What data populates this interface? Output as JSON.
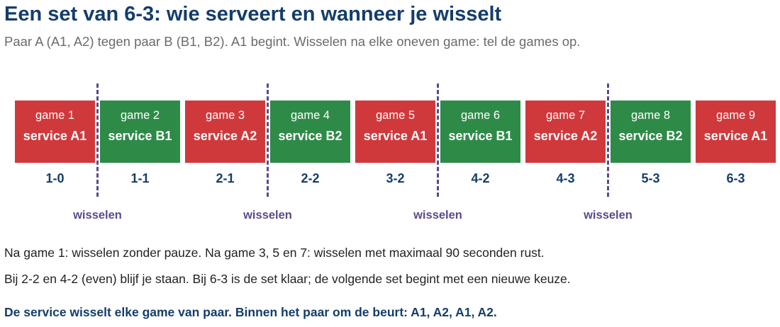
{
  "title": "Een set van 6-3: wie serveert en wanneer je wisselt",
  "subtitle": "Paar A (A1, A2) tegen paar B (B1, B2). A1 begint. Wisselen na elke oneven game: tel de games op.",
  "colors": {
    "pair_a": "#d0393c",
    "pair_b": "#2e8b47",
    "title": "#143d6b",
    "switch": "#5b4a8e"
  },
  "games": [
    {
      "game": "game 1",
      "service": "service A1",
      "score": "1-0",
      "pair": "A"
    },
    {
      "game": "game 2",
      "service": "service B1",
      "score": "1-1",
      "pair": "B"
    },
    {
      "game": "game 3",
      "service": "service A2",
      "score": "2-1",
      "pair": "A"
    },
    {
      "game": "game 4",
      "service": "service B2",
      "score": "2-2",
      "pair": "B"
    },
    {
      "game": "game 5",
      "service": "service A1",
      "score": "3-2",
      "pair": "A"
    },
    {
      "game": "game 6",
      "service": "service B1",
      "score": "4-2",
      "pair": "B"
    },
    {
      "game": "game 7",
      "service": "service A2",
      "score": "4-3",
      "pair": "A"
    },
    {
      "game": "game 8",
      "service": "service B2",
      "score": "5-3",
      "pair": "B"
    },
    {
      "game": "game 9",
      "service": "service A1",
      "score": "6-3",
      "pair": "A"
    }
  ],
  "switches": [
    {
      "label": "wisselen",
      "after_game": 1
    },
    {
      "label": "wisselen",
      "after_game": 3
    },
    {
      "label": "wisselen",
      "after_game": 5
    },
    {
      "label": "wisselen",
      "after_game": 7
    }
  ],
  "notes": {
    "line1": "Na game 1: wisselen zonder pauze. Na game 3, 5 en 7: wisselen met maximaal 90 seconden rust.",
    "line2": "Bij 2-2 en 4-2 (even) blijf je staan. Bij 6-3 is de set klaar; de volgende set begint met een nieuwe keuze.",
    "emphasis": "De service wisselt elke game van paar. Binnen het paar om de beurt: A1, A2, A1, A2."
  }
}
